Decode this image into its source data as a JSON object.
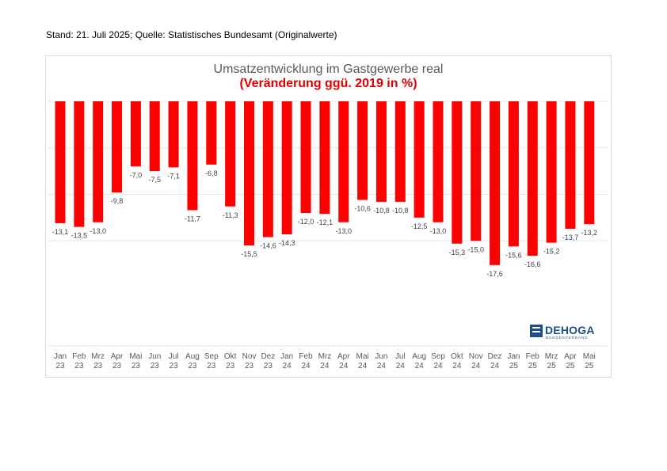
{
  "header": {
    "stand": "Stand: 21. Juli 2025; Quelle: Statistisches Bundesamt (Originalwerte)"
  },
  "chart_data": {
    "type": "bar",
    "title": "Umsatzentwicklung im Gastgewerbe real",
    "subtitle": "(Veränderung ggü. 2019 in %)",
    "xlabel": "",
    "ylabel": "",
    "ylim": [
      -20,
      0
    ],
    "grid": true,
    "bar_color": "#ff0000",
    "title_color": "#595959",
    "subtitle_color": "#e00000",
    "categories": [
      "Jan 23",
      "Feb 23",
      "Mrz 23",
      "Apr 23",
      "Mai 23",
      "Jun 23",
      "Jul 23",
      "Aug 23",
      "Sep 23",
      "Okt 23",
      "Nov 23",
      "Dez 23",
      "Jan 24",
      "Feb 24",
      "Mrz 24",
      "Apr 24",
      "Mai 24",
      "Jun 24",
      "Jul 24",
      "Aug 24",
      "Sep 24",
      "Okt 24",
      "Nov 24",
      "Dez 24",
      "Jan 25",
      "Feb 25",
      "Mrz 25",
      "Apr 25",
      "Mai 25"
    ],
    "values": [
      -13.1,
      -13.5,
      -13.0,
      -9.8,
      -7.0,
      -7.5,
      -7.1,
      -11.7,
      -6.8,
      -11.3,
      -15.5,
      -14.6,
      -14.3,
      -12.0,
      -12.1,
      -13.0,
      -10.6,
      -10.8,
      -10.8,
      -12.5,
      -13.0,
      -15.3,
      -15.0,
      -17.6,
      -15.6,
      -16.6,
      -15.2,
      -13.7,
      -13.2
    ],
    "value_labels": [
      "-13,1",
      "-13,5",
      "-13,0",
      "-9,8",
      "-7,0",
      "-7,5",
      "-7,1",
      "-11,7",
      "-6,8",
      "-11,3",
      "-15,5",
      "-14,6",
      "-14,3",
      "-12,0",
      "-12,1",
      "-13,0",
      "-10,6",
      "-10,8",
      "-10,8",
      "-12,5",
      "-13,0",
      "-15,3",
      "-15,0",
      "-17,6",
      "-15,6",
      "-16,6",
      "-15,2",
      "-13,7",
      "-13,2"
    ]
  },
  "logo": {
    "name": "DEHOGA",
    "tagline": "BUNDESVERBAND",
    "icon": "dehoga-logo-icon",
    "color": "#1f4e8c"
  }
}
